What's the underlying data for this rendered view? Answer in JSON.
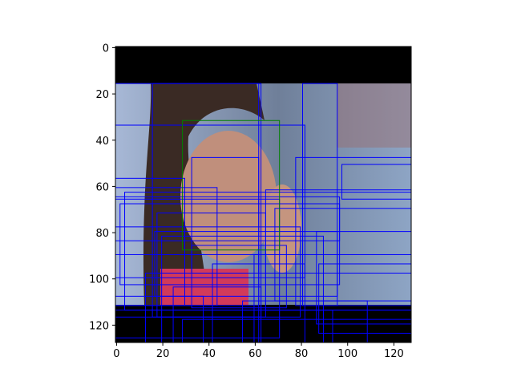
{
  "chart_data": {
    "type": "image",
    "title": "",
    "xlabel": "",
    "ylabel": "",
    "xlim": [
      -0.5,
      127.5
    ],
    "ylim": [
      127.5,
      -0.5
    ],
    "y_axis_inverted": true,
    "grid": false,
    "legend": "none",
    "x_ticks": [
      0,
      20,
      40,
      60,
      80,
      100,
      120
    ],
    "y_ticks": [
      0,
      20,
      40,
      60,
      80,
      100,
      120
    ],
    "x_tick_labels": [
      "0",
      "20",
      "40",
      "60",
      "80",
      "100",
      "120"
    ],
    "y_tick_labels": [
      "0",
      "20",
      "40",
      "60",
      "80",
      "100",
      "120"
    ],
    "image_description_colors": {
      "black_band": "#000000",
      "skin": "#c08f7c",
      "hair": "#3a2a24",
      "background_blue": "#8ea5c5",
      "shirt": "#d23a5a"
    },
    "boxes_green": [
      {
        "x0": 29,
        "y0": 32,
        "x1": 71,
        "y1": 88
      }
    ],
    "box_color_green": "#008000",
    "box_color_blue": "#0000ff",
    "boxes_blue": [
      {
        "x0": 0,
        "y0": 16,
        "x1": 62,
        "y1": 112
      },
      {
        "x0": 16,
        "y0": 16,
        "x1": 63,
        "y1": 117
      },
      {
        "x0": 81,
        "y0": 16,
        "x1": 96,
        "y1": 112
      },
      {
        "x0": 0,
        "y0": 34,
        "x1": 82,
        "y1": 100
      },
      {
        "x0": 33,
        "y0": 48,
        "x1": 62,
        "y1": 98
      },
      {
        "x0": 78,
        "y0": 48,
        "x1": 128,
        "y1": 112
      },
      {
        "x0": 98,
        "y0": 51,
        "x1": 128,
        "y1": 66
      },
      {
        "x0": 0,
        "y0": 57,
        "x1": 30,
        "y1": 112
      },
      {
        "x0": 0,
        "y0": 61,
        "x1": 44,
        "y1": 112
      },
      {
        "x0": 4,
        "y0": 63,
        "x1": 128,
        "y1": 114
      },
      {
        "x0": 0,
        "y0": 65,
        "x1": 97,
        "y1": 84
      },
      {
        "x0": 0,
        "y0": 66,
        "x1": 71,
        "y1": 126
      },
      {
        "x0": 2,
        "y0": 68,
        "x1": 97,
        "y1": 103
      },
      {
        "x0": 18,
        "y0": 72,
        "x1": 65,
        "y1": 117
      },
      {
        "x0": 65,
        "y0": 62,
        "x1": 128,
        "y1": 114
      },
      {
        "x0": 69,
        "y0": 70,
        "x1": 128,
        "y1": 110
      },
      {
        "x0": 0,
        "y0": 78,
        "x1": 80,
        "y1": 117
      },
      {
        "x0": 17,
        "y0": 80,
        "x1": 96,
        "y1": 108
      },
      {
        "x0": 20,
        "y0": 82,
        "x1": 90,
        "y1": 128
      },
      {
        "x0": 87,
        "y0": 80,
        "x1": 128,
        "y1": 120
      },
      {
        "x0": 33,
        "y0": 86,
        "x1": 74,
        "y1": 113
      },
      {
        "x0": 0,
        "y0": 90,
        "x1": 62,
        "y1": 128
      },
      {
        "x0": 60,
        "y0": 90,
        "x1": 128,
        "y1": 128
      },
      {
        "x0": 42,
        "y0": 94,
        "x1": 82,
        "y1": 128
      },
      {
        "x0": 88,
        "y0": 94,
        "x1": 128,
        "y1": 124
      },
      {
        "x0": 13,
        "y0": 98,
        "x1": 128,
        "y1": 128
      },
      {
        "x0": 25,
        "y0": 104,
        "x1": 63,
        "y1": 128
      },
      {
        "x0": 0,
        "y0": 108,
        "x1": 38,
        "y1": 128
      },
      {
        "x0": 55,
        "y0": 110,
        "x1": 109,
        "y1": 128
      },
      {
        "x0": 0,
        "y0": 114,
        "x1": 94,
        "y1": 128
      },
      {
        "x0": 29,
        "y0": 118,
        "x1": 128,
        "y1": 128
      }
    ]
  }
}
